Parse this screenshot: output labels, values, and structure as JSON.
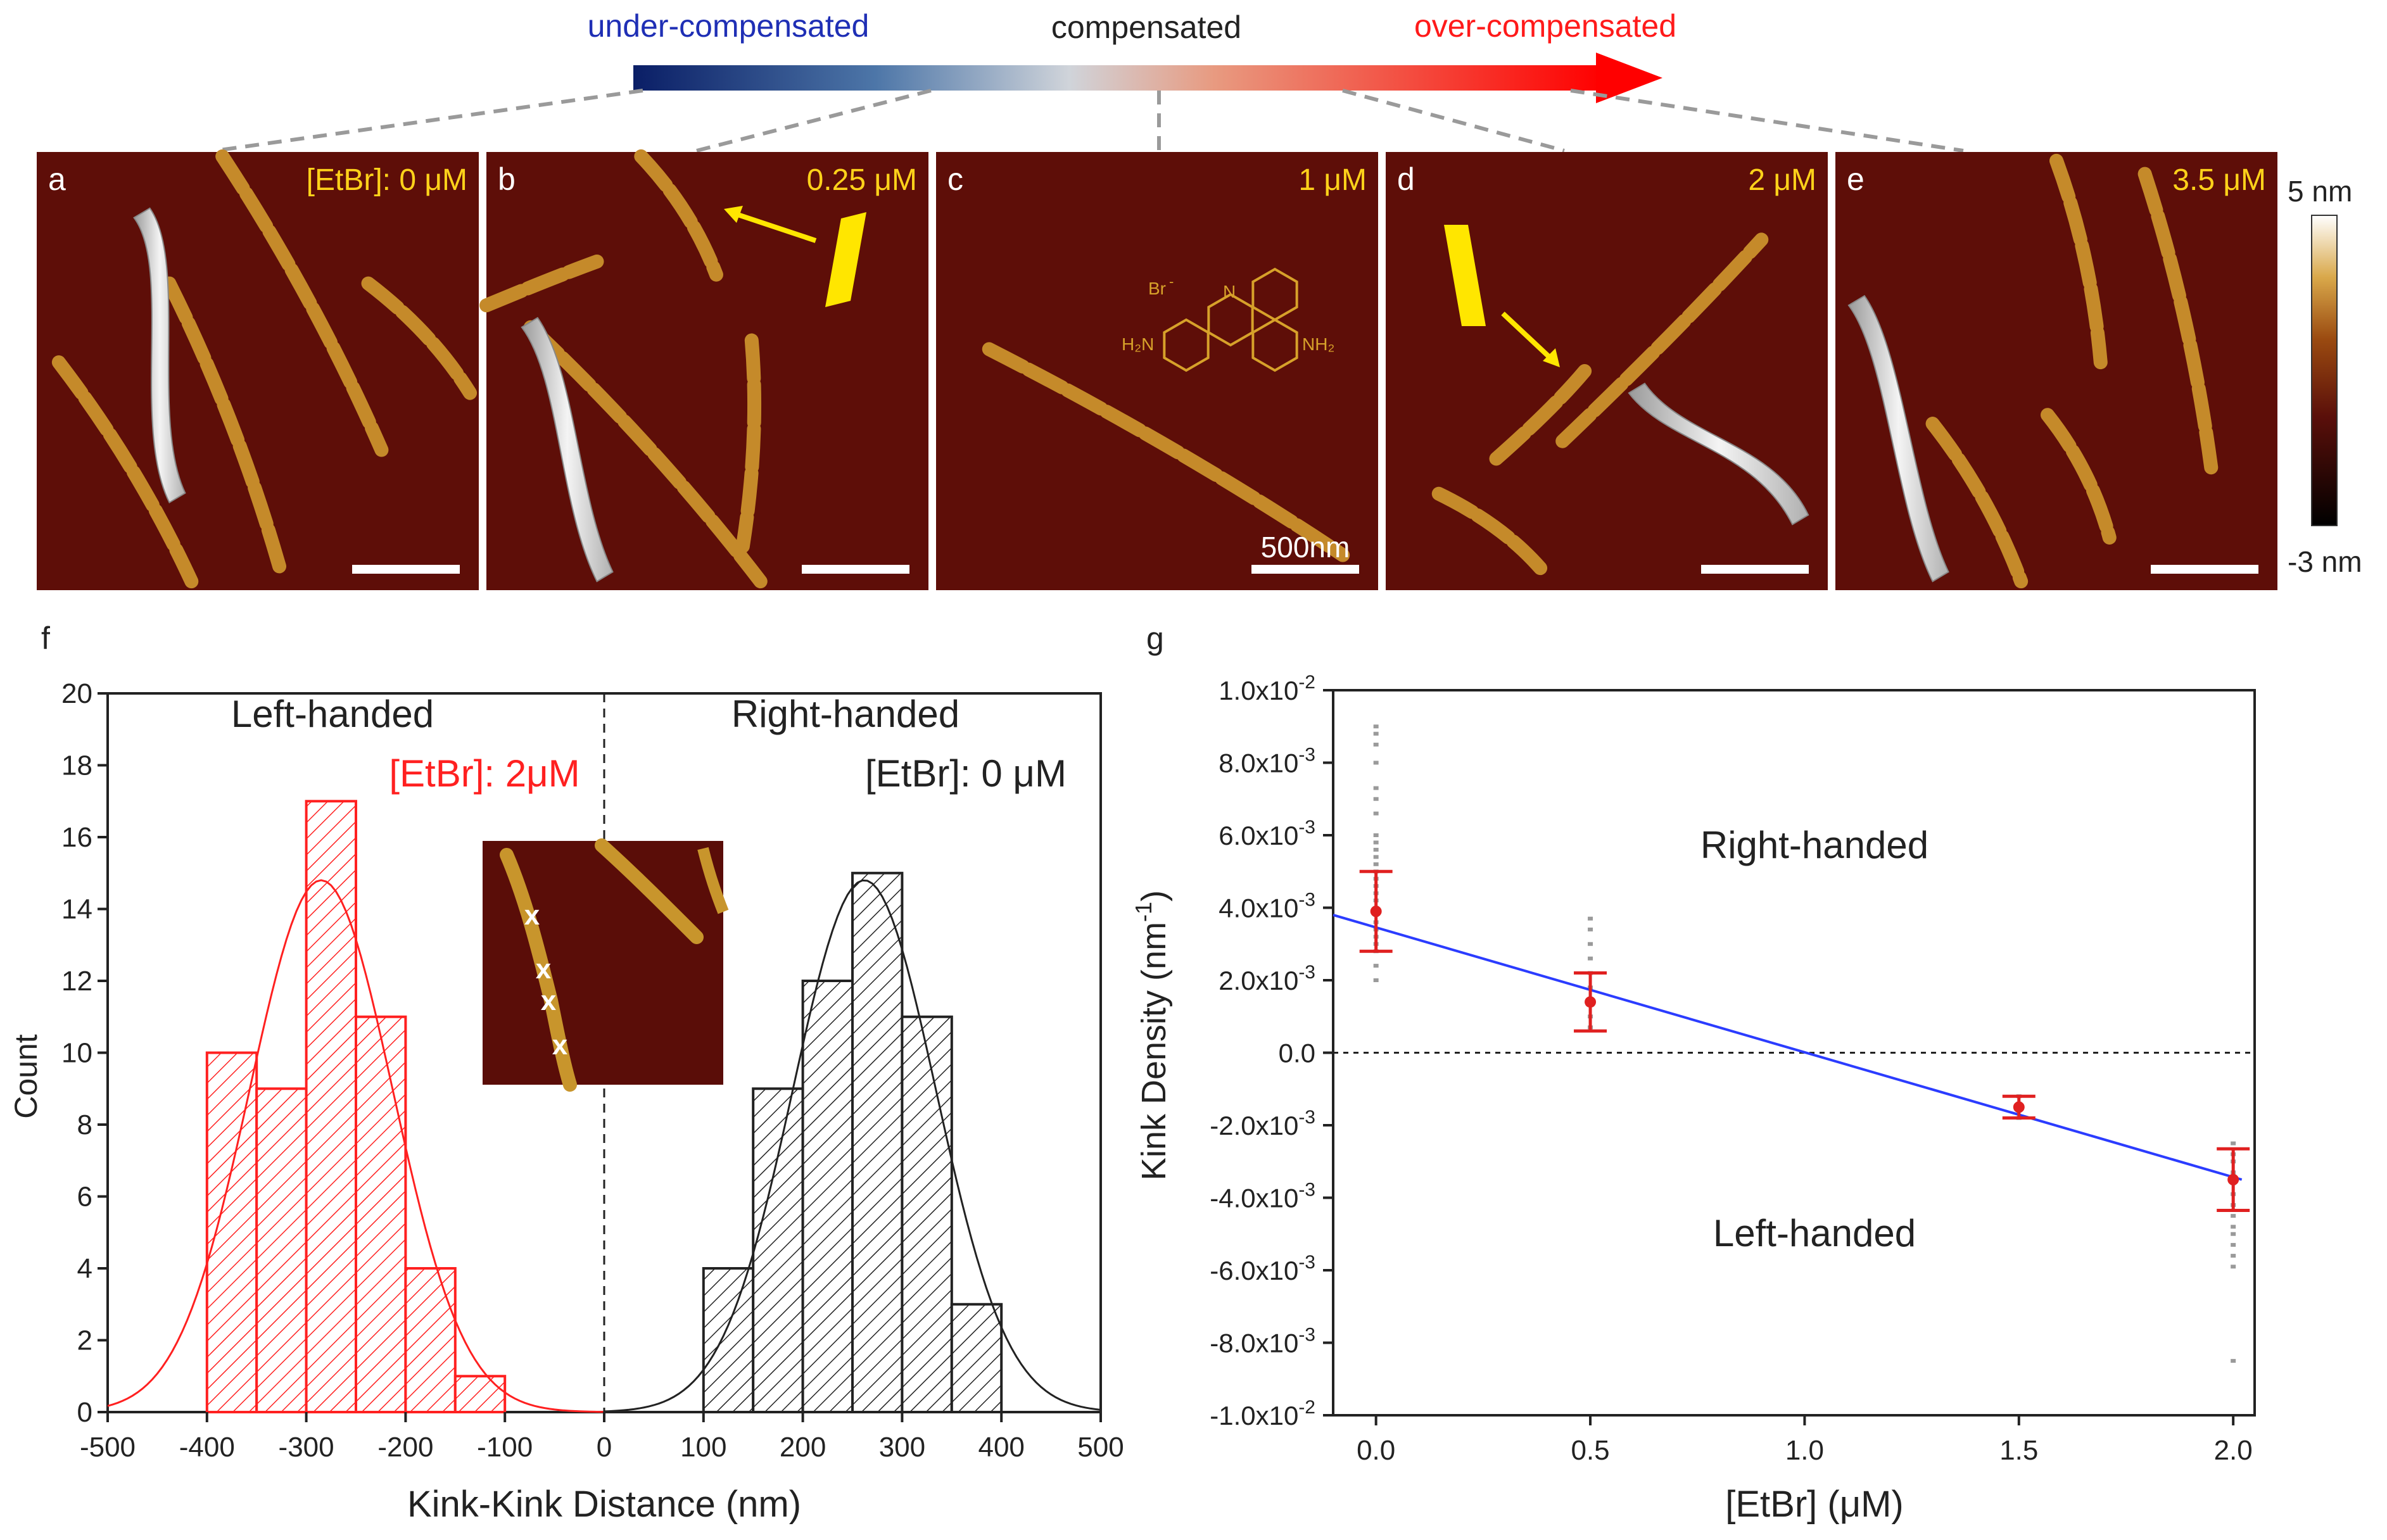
{
  "compensation_bar": {
    "left_label": "under-compensated",
    "middle_label": "compensated",
    "right_label": "over-compensated",
    "colors": {
      "left": "#1f2fb5",
      "middle": "#222222",
      "right": "#ff1a1a",
      "gradient_start": "#0a1e66",
      "gradient_mid": "#c8c8c8",
      "gradient_end": "#ff0000"
    }
  },
  "afm_panels": [
    {
      "letter": "a",
      "concentration": "[EtBr]: 0 μM"
    },
    {
      "letter": "b",
      "concentration": "0.25 μM"
    },
    {
      "letter": "c",
      "concentration": "1 μM",
      "scale_bar_label": "500nm"
    },
    {
      "letter": "d",
      "concentration": "2 μM"
    },
    {
      "letter": "e",
      "concentration": "3.5 μM"
    }
  ],
  "molecule": {
    "counter_ion": "Br",
    "counter_ion_charge": "-",
    "nitrogen": "N",
    "charge": "+",
    "amine_left": "H₂N",
    "amine_right": "NH₂"
  },
  "colorbar": {
    "max_label": "5 nm",
    "min_label": "-3 nm"
  },
  "panel_f": {
    "letter": "f",
    "ylabel": "Count",
    "xlabel": "Kink-Kink Distance (nm)",
    "left_title": "Left-handed",
    "left_condition": "[EtBr]: 2μM",
    "right_title": "Right-handed",
    "right_condition": "[EtBr]: 0 μM",
    "inset_marker": "x"
  },
  "panel_g": {
    "letter": "g",
    "ylabel": "Kink Density (nm",
    "ylabel_sup": "-1",
    "ylabel_end": ")",
    "xlabel": "[EtBr] (μM)",
    "upper_region": "Right-handed",
    "lower_region": "Left-handed"
  },
  "chart_data": [
    {
      "type": "bar",
      "panel": "f",
      "xlim": [
        -500,
        500
      ],
      "ylim": [
        0,
        20
      ],
      "xticks": [
        -500,
        -400,
        -300,
        -200,
        -100,
        0,
        100,
        200,
        300,
        400,
        500
      ],
      "yticks": [
        0,
        2,
        4,
        6,
        8,
        10,
        12,
        14,
        16,
        18,
        20
      ],
      "bin_width": 50,
      "series": [
        {
          "name": "[EtBr]: 2μM",
          "color": "#ff2020",
          "bin_starts": [
            -400,
            -350,
            -300,
            -250,
            -200,
            -150
          ],
          "counts": [
            10,
            9,
            17,
            11,
            4,
            1
          ],
          "gaussian": {
            "center": -285,
            "sigma": 72,
            "amplitude": 14.8
          }
        },
        {
          "name": "[EtBr]: 0 μM",
          "color": "#222222",
          "bin_starts": [
            100,
            150,
            200,
            250,
            300,
            350
          ],
          "counts": [
            4,
            9,
            12,
            15,
            11,
            3
          ],
          "gaussian": {
            "center": 262,
            "sigma": 72,
            "amplitude": 14.8
          }
        }
      ]
    },
    {
      "type": "scatter",
      "panel": "g",
      "xlim": [
        -0.1,
        2.05
      ],
      "ylim": [
        -0.01,
        0.01
      ],
      "xticks": [
        0.0,
        0.5,
        1.0,
        1.5,
        2.0
      ],
      "xtick_labels": [
        "0.0",
        "0.5",
        "1.0",
        "1.5",
        "2.0"
      ],
      "yticks": [
        0.01,
        0.008,
        0.006,
        0.004,
        0.002,
        0.0,
        -0.002,
        -0.004,
        -0.006,
        -0.008,
        -0.01
      ],
      "ytick_mantissa": [
        "1.0x10",
        "8.0x10",
        "6.0x10",
        "4.0x10",
        "2.0x10",
        "0.0",
        "-2.0x10",
        "-4.0x10",
        "-6.0x10",
        "-8.0x10",
        "-1.0x10"
      ],
      "ytick_exponent": [
        "-2",
        "-3",
        "-3",
        "-3",
        "-3",
        "",
        "-3",
        "-3",
        "-3",
        "-3",
        "-2"
      ],
      "means": [
        {
          "x": 0.0,
          "y": 0.0039,
          "err": 0.0011
        },
        {
          "x": 0.5,
          "y": 0.0014,
          "err": 0.0008
        },
        {
          "x": 1.5,
          "y": -0.0015,
          "err": 0.0003
        },
        {
          "x": 2.0,
          "y": -0.0035,
          "err": 0.00085
        }
      ],
      "raw_points": {
        "0.0": [
          0.009,
          0.0088,
          0.0085,
          0.008,
          0.0073,
          0.007,
          0.0066,
          0.006,
          0.0058,
          0.0056,
          0.0054,
          0.0052,
          0.005,
          0.0048,
          0.0046,
          0.0044,
          0.0042,
          0.004,
          0.0038,
          0.0036,
          0.0034,
          0.0032,
          0.003,
          0.0028,
          0.0024,
          0.002
        ],
        "0.5": [
          0.0037,
          0.0034,
          0.003,
          0.0026,
          0.0022,
          0.0018,
          0.0014,
          0.001,
          0.0007
        ],
        "1.5": [
          -0.0012,
          -0.0014,
          -0.0016,
          -0.0018
        ],
        "2.0": [
          -0.0025,
          -0.0028,
          -0.003,
          -0.0033,
          -0.0036,
          -0.0039,
          -0.0042,
          -0.0045,
          -0.0048,
          -0.005,
          -0.0053,
          -0.0056,
          -0.0059,
          -0.0085
        ]
      },
      "fit": {
        "x0": -0.1,
        "y0": 0.0038,
        "x1": 2.02,
        "y1": -0.0035,
        "color": "#2b3cff"
      },
      "error_color": "#e02020"
    }
  ]
}
